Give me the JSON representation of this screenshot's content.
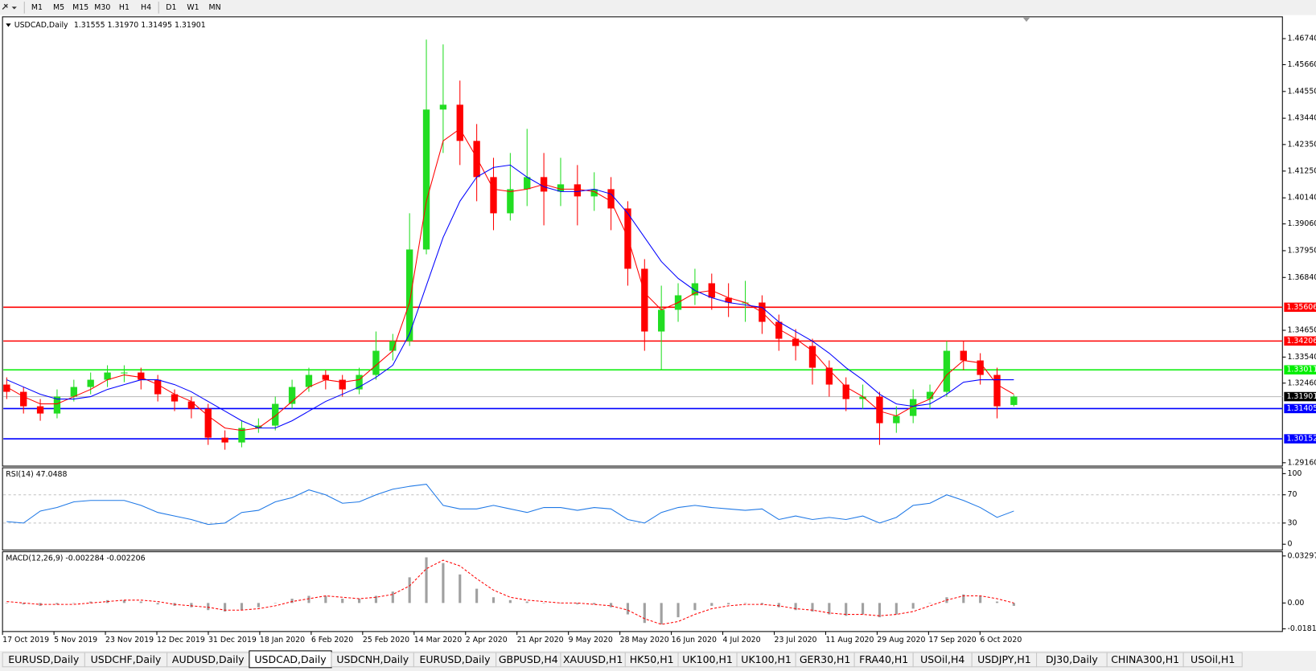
{
  "toolbar": {
    "timeframes": [
      "M1",
      "M5",
      "M15",
      "M30",
      "H1",
      "H4",
      "D1",
      "W1",
      "MN"
    ]
  },
  "chart_data": {
    "type": "candlestick",
    "symbol": "USDCAD,Daily",
    "quote": "1.31555 1.31970 1.31495 1.31901",
    "up_color": "#22dd22",
    "down_color": "#ff0000",
    "ylim": [
      1.29021,
      1.47645
    ],
    "yticks": [
      {
        "value": 1.4674,
        "label": "1.46740"
      },
      {
        "value": 1.4566,
        "label": "1.45660"
      },
      {
        "value": 1.4455,
        "label": "1.44550"
      },
      {
        "value": 1.4344,
        "label": "1.43440"
      },
      {
        "value": 1.4235,
        "label": "1.42350"
      },
      {
        "value": 1.4125,
        "label": "1.41250"
      },
      {
        "value": 1.4014,
        "label": "1.40140"
      },
      {
        "value": 1.3906,
        "label": "1.39060"
      },
      {
        "value": 1.3795,
        "label": "1.37950"
      },
      {
        "value": 1.3684,
        "label": "1.36840"
      },
      {
        "value": 1.3465,
        "label": "1.34650"
      },
      {
        "value": 1.3354,
        "label": "1.33540"
      },
      {
        "value": 1.3246,
        "label": "1.32460"
      },
      {
        "value": 1.2916,
        "label": "1.29160"
      }
    ],
    "x_labels": [
      "17 Oct 2019",
      "5 Nov 2019",
      "23 Nov 2019",
      "12 Dec 2019",
      "31 Dec 2019",
      "18 Jan 2020",
      "6 Feb 2020",
      "25 Feb 2020",
      "14 Mar 2020",
      "2 Apr 2020",
      "21 Apr 2020",
      "9 May 2020",
      "28 May 2020",
      "16 Jun 2020",
      "4 Jul 2020",
      "23 Jul 2020",
      "11 Aug 2020",
      "29 Aug 2020",
      "17 Sep 2020",
      "6 Oct 2020"
    ],
    "ohlc": [
      [
        1.324,
        1.327,
        1.318,
        1.321
      ],
      [
        1.321,
        1.323,
        1.312,
        1.315
      ],
      [
        1.315,
        1.318,
        1.309,
        1.312
      ],
      [
        1.312,
        1.322,
        1.31,
        1.319
      ],
      [
        1.319,
        1.326,
        1.317,
        1.323
      ],
      [
        1.323,
        1.329,
        1.32,
        1.326
      ],
      [
        1.326,
        1.332,
        1.323,
        1.329
      ],
      [
        1.329,
        1.332,
        1.325,
        1.329
      ],
      [
        1.329,
        1.331,
        1.322,
        1.326
      ],
      [
        1.326,
        1.328,
        1.317,
        1.32
      ],
      [
        1.32,
        1.322,
        1.313,
        1.317
      ],
      [
        1.317,
        1.319,
        1.31,
        1.314
      ],
      [
        1.314,
        1.316,
        1.299,
        1.302
      ],
      [
        1.302,
        1.305,
        1.297,
        1.3
      ],
      [
        1.3,
        1.309,
        1.298,
        1.306
      ],
      [
        1.306,
        1.31,
        1.304,
        1.307
      ],
      [
        1.307,
        1.319,
        1.305,
        1.316
      ],
      [
        1.316,
        1.326,
        1.314,
        1.323
      ],
      [
        1.323,
        1.331,
        1.321,
        1.328
      ],
      [
        1.328,
        1.33,
        1.322,
        1.326
      ],
      [
        1.326,
        1.328,
        1.319,
        1.322
      ],
      [
        1.322,
        1.331,
        1.32,
        1.328
      ],
      [
        1.328,
        1.346,
        1.326,
        1.338
      ],
      [
        1.338,
        1.345,
        1.334,
        1.342
      ],
      [
        1.342,
        1.395,
        1.34,
        1.38
      ],
      [
        1.38,
        1.467,
        1.378,
        1.438
      ],
      [
        1.438,
        1.465,
        1.42,
        1.44
      ],
      [
        1.44,
        1.45,
        1.415,
        1.425
      ],
      [
        1.425,
        1.432,
        1.4,
        1.41
      ],
      [
        1.41,
        1.418,
        1.388,
        1.395
      ],
      [
        1.395,
        1.42,
        1.392,
        1.405
      ],
      [
        1.405,
        1.43,
        1.398,
        1.41
      ],
      [
        1.41,
        1.42,
        1.39,
        1.404
      ],
      [
        1.404,
        1.418,
        1.398,
        1.407
      ],
      [
        1.407,
        1.415,
        1.39,
        1.402
      ],
      [
        1.402,
        1.412,
        1.396,
        1.405
      ],
      [
        1.405,
        1.41,
        1.388,
        1.397
      ],
      [
        1.397,
        1.4,
        1.365,
        1.372
      ],
      [
        1.372,
        1.376,
        1.338,
        1.346
      ],
      [
        1.346,
        1.365,
        1.33,
        1.355
      ],
      [
        1.355,
        1.366,
        1.35,
        1.361
      ],
      [
        1.361,
        1.372,
        1.357,
        1.366
      ],
      [
        1.366,
        1.37,
        1.355,
        1.36
      ],
      [
        1.36,
        1.366,
        1.352,
        1.358
      ],
      [
        1.358,
        1.367,
        1.35,
        1.358
      ],
      [
        1.358,
        1.361,
        1.345,
        1.35
      ],
      [
        1.35,
        1.353,
        1.338,
        1.343
      ],
      [
        1.343,
        1.347,
        1.334,
        1.34
      ],
      [
        1.34,
        1.343,
        1.324,
        1.331
      ],
      [
        1.331,
        1.334,
        1.319,
        1.324
      ],
      [
        1.324,
        1.327,
        1.313,
        1.318
      ],
      [
        1.318,
        1.324,
        1.314,
        1.319
      ],
      [
        1.319,
        1.321,
        1.299,
        1.308
      ],
      [
        1.308,
        1.315,
        1.304,
        1.311
      ],
      [
        1.311,
        1.322,
        1.308,
        1.318
      ],
      [
        1.318,
        1.324,
        1.314,
        1.321
      ],
      [
        1.321,
        1.342,
        1.319,
        1.338
      ],
      [
        1.338,
        1.342,
        1.33,
        1.334
      ],
      [
        1.334,
        1.337,
        1.324,
        1.328
      ],
      [
        1.328,
        1.331,
        1.31,
        1.315
      ],
      [
        1.31555,
        1.3197,
        1.31495,
        1.31901
      ]
    ],
    "series": [
      {
        "color": "#ff0000",
        "values": [
          1.323,
          1.319,
          1.316,
          1.316,
          1.319,
          1.322,
          1.326,
          1.328,
          1.327,
          1.324,
          1.32,
          1.317,
          1.311,
          1.306,
          1.305,
          1.306,
          1.311,
          1.317,
          1.323,
          1.326,
          1.325,
          1.326,
          1.332,
          1.338,
          1.358,
          1.4,
          1.425,
          1.43,
          1.418,
          1.405,
          1.404,
          1.405,
          1.407,
          1.405,
          1.405,
          1.404,
          1.4,
          1.385,
          1.362,
          1.355,
          1.358,
          1.362,
          1.363,
          1.36,
          1.358,
          1.354,
          1.347,
          1.343,
          1.338,
          1.33,
          1.323,
          1.319,
          1.313,
          1.311,
          1.315,
          1.318,
          1.328,
          1.334,
          1.333,
          1.324,
          1.32
        ]
      },
      {
        "color": "#0000ff",
        "values": [
          1.326,
          1.323,
          1.32,
          1.318,
          1.318,
          1.319,
          1.322,
          1.324,
          1.326,
          1.326,
          1.324,
          1.321,
          1.317,
          1.313,
          1.309,
          1.306,
          1.306,
          1.309,
          1.313,
          1.317,
          1.32,
          1.323,
          1.327,
          1.332,
          1.345,
          1.365,
          1.385,
          1.4,
          1.41,
          1.414,
          1.415,
          1.41,
          1.406,
          1.404,
          1.404,
          1.405,
          1.403,
          1.395,
          1.385,
          1.375,
          1.368,
          1.363,
          1.36,
          1.358,
          1.357,
          1.356,
          1.35,
          1.346,
          1.342,
          1.337,
          1.331,
          1.326,
          1.32,
          1.316,
          1.315,
          1.316,
          1.32,
          1.325,
          1.326,
          1.326,
          1.326
        ]
      }
    ],
    "levels": [
      {
        "value": 1.35606,
        "color": "#ff0000"
      },
      {
        "value": 1.34206,
        "color": "#ff0000"
      },
      {
        "value": 1.33011,
        "color": "#00ee00"
      },
      {
        "value": 1.31405,
        "color": "#0000ff"
      },
      {
        "value": 1.30152,
        "color": "#0000ff"
      }
    ],
    "last_price": 1.31901,
    "rsi": {
      "title": "RSI(14) 47.0488",
      "color": "#1e78e6",
      "ylim": [
        -8.3,
        108.3
      ],
      "yticks": [
        100,
        70,
        30,
        0
      ],
      "dashed_levels": [
        70,
        30
      ],
      "values": [
        32,
        30,
        47,
        52,
        60,
        62,
        62,
        62,
        55,
        45,
        40,
        35,
        28,
        30,
        45,
        48,
        60,
        66,
        77,
        70,
        58,
        60,
        70,
        78,
        82,
        85,
        55,
        50,
        50,
        55,
        50,
        45,
        52,
        52,
        48,
        52,
        50,
        35,
        30,
        45,
        52,
        55,
        52,
        50,
        48,
        50,
        35,
        40,
        35,
        38,
        35,
        40,
        30,
        38,
        55,
        58,
        70,
        62,
        52,
        38,
        47
      ]
    },
    "macd": {
      "title": "MACD(12,26,9) -0.002284 -0.002206",
      "hist_color": "#a0a0a0",
      "signal_color": "#ff0000",
      "ylim": [
        -0.02002,
        0.03592
      ],
      "yticks": [
        0.032972,
        {
          "value": 0,
          "label": "0.00"
        },
        -0.01815
      ],
      "histogram": [
        0,
        -0.001,
        -0.002,
        -0.001,
        0,
        0.001,
        0.002,
        0.002,
        0.001,
        -0.001,
        -0.002,
        -0.003,
        -0.005,
        -0.006,
        -0.005,
        -0.003,
        0,
        0.003,
        0.005,
        0.005,
        0.003,
        0.003,
        0.005,
        0.008,
        0.018,
        0.032,
        0.028,
        0.02,
        0.01,
        0.004,
        0.002,
        0.001,
        0,
        0,
        -0.001,
        -0.001,
        -0.003,
        -0.008,
        -0.014,
        -0.015,
        -0.01,
        -0.005,
        -0.002,
        -0.001,
        0,
        -0.001,
        -0.003,
        -0.005,
        -0.006,
        -0.008,
        -0.009,
        -0.008,
        -0.01,
        -0.008,
        -0.004,
        0,
        0.004,
        0.006,
        0.005,
        0.001,
        -0.002
      ],
      "signal": [
        0.001,
        0,
        -0.001,
        -0.001,
        -0.001,
        0,
        0.001,
        0.002,
        0.002,
        0.001,
        -0.001,
        -0.002,
        -0.003,
        -0.005,
        -0.005,
        -0.004,
        -0.002,
        0.001,
        0.003,
        0.005,
        0.004,
        0.003,
        0.004,
        0.006,
        0.012,
        0.024,
        0.03,
        0.026,
        0.017,
        0.009,
        0.004,
        0.002,
        0.001,
        0,
        0,
        -0.001,
        -0.002,
        -0.005,
        -0.011,
        -0.015,
        -0.013,
        -0.008,
        -0.004,
        -0.002,
        -0.001,
        -0.001,
        -0.002,
        -0.004,
        -0.005,
        -0.007,
        -0.008,
        -0.008,
        -0.009,
        -0.008,
        -0.006,
        -0.002,
        0.002,
        0.005,
        0.005,
        0.003,
        0
      ]
    }
  },
  "tabs": {
    "items": [
      "EURUSD,Daily",
      "USDCHF,Daily",
      "AUDUSD,Daily",
      "USDCAD,Daily",
      "USDCNH,Daily",
      "EURUSD,Daily",
      "GBPUSD,H4",
      "XAUUSD,H1",
      "HK50,H1",
      "UK100,H1",
      "UK100,H1",
      "GER30,H1",
      "FRA40,H1",
      "USOil,H4",
      "USDJPY,H1",
      "DJ30,Daily",
      "CHINA300,H1",
      "USOil,H1"
    ],
    "active": 3
  }
}
